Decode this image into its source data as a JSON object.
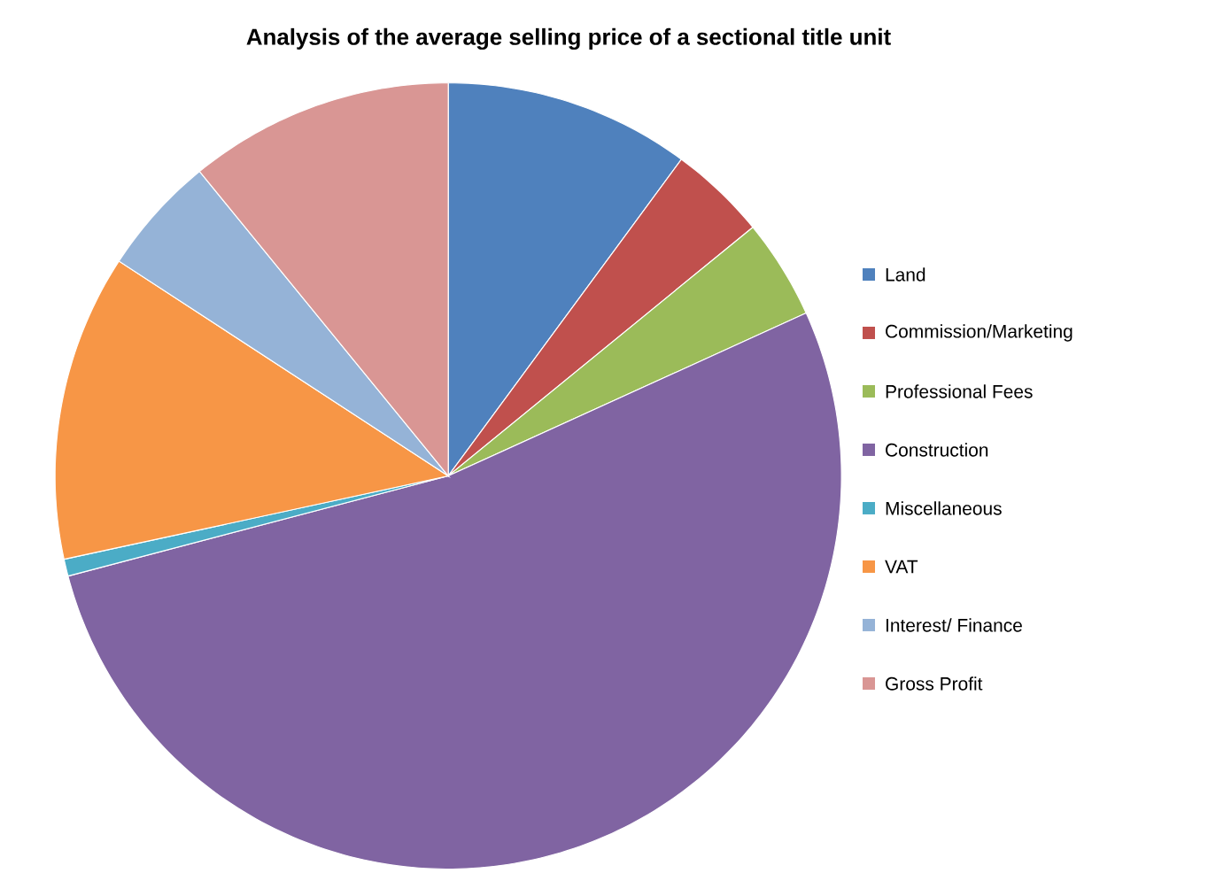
{
  "chart_data": {
    "type": "pie",
    "title": "Analysis of the average selling price of a sectional title unit",
    "categories": [
      "Land",
      "Commission/Marketing",
      "Professional Fees",
      "Construction",
      "Miscellaneous",
      "VAT",
      "Interest/ Finance",
      "Gross Profit"
    ],
    "values": [
      10.1,
      4.0,
      4.1,
      52.7,
      0.7,
      12.6,
      4.9,
      10.9
    ],
    "colors": [
      "#4f81bd",
      "#c0504d",
      "#9bbb59",
      "#8064a2",
      "#4bacc6",
      "#f79646",
      "#95b3d7",
      "#d99694"
    ],
    "legend": "right"
  }
}
